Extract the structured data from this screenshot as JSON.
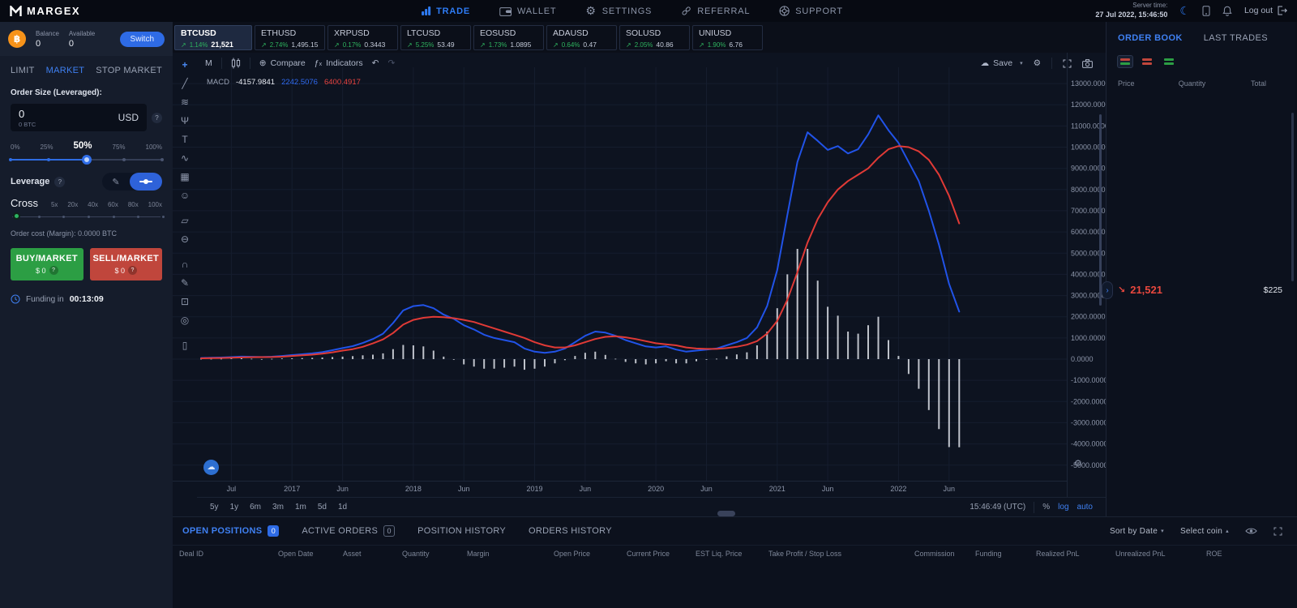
{
  "colors": {
    "accent": "#2e7cf6",
    "green": "#2eb35f",
    "buy": "#2c9e44",
    "sell": "#c0463c",
    "down": "#e8483e",
    "macd_line": "#2153e8",
    "signal_line": "#e03a36",
    "histogram": "#dfe3ea"
  },
  "app": {
    "brand": "MARGEX",
    "nav": [
      {
        "label": "TRADE",
        "icon": "trade-chart-icon",
        "active": true
      },
      {
        "label": "WALLET",
        "icon": "wallet-icon",
        "active": false
      },
      {
        "label": "SETTINGS",
        "icon": "gear-icon",
        "active": false
      },
      {
        "label": "REFERRAL",
        "icon": "link-icon",
        "active": false
      },
      {
        "label": "SUPPORT",
        "icon": "lifebuoy-icon",
        "active": false
      }
    ],
    "server_time_label": "Server time:",
    "server_time": "27 Jul 2022, 15:46:50",
    "logout_label": "Log out"
  },
  "account": {
    "balance_label": "Balance",
    "balance": "0",
    "available_label": "Available",
    "available": "0",
    "switch_label": "Switch"
  },
  "order_form": {
    "tabs": [
      "LIMIT",
      "MARKET",
      "STOP MARKET"
    ],
    "active_tab": "MARKET",
    "size_label": "Order Size (Leveraged):",
    "size_value": "0",
    "size_sub": "0 BTC",
    "size_unit": "USD",
    "help_glyph": "?",
    "size_marks": [
      "0%",
      "25%",
      "50%",
      "75%",
      "100%"
    ],
    "size_active_mark": "50%",
    "size_percent": 50,
    "leverage_label": "Leverage",
    "margin_mode": "Cross",
    "leverage_marks": [
      "5x",
      "20x",
      "40x",
      "60x",
      "80x",
      "100x"
    ],
    "order_cost": "Order cost (Margin): 0.0000 BTC",
    "buy_label": "BUY/MARKET",
    "buy_amount": "$ 0",
    "sell_label": "SELL/MARKET",
    "sell_amount": "$ 0",
    "funding_label": "Funding in",
    "funding_time": "00:13:09"
  },
  "tickers": [
    {
      "symbol": "BTCUSD",
      "change": "1.14%",
      "price": "21,521",
      "active": true
    },
    {
      "symbol": "ETHUSD",
      "change": "2.74%",
      "price": "1,495.15",
      "active": false
    },
    {
      "symbol": "XRPUSD",
      "change": "0.17%",
      "price": "0.3443",
      "active": false
    },
    {
      "symbol": "LTCUSD",
      "change": "5.25%",
      "price": "53.49",
      "active": false
    },
    {
      "symbol": "EOSUSD",
      "change": "1.73%",
      "price": "1.0895",
      "active": false
    },
    {
      "symbol": "ADAUSD",
      "change": "0.64%",
      "price": "0.47",
      "active": false
    },
    {
      "symbol": "SOLUSD",
      "change": "2.05%",
      "price": "40.86",
      "active": false
    },
    {
      "symbol": "UNIUSD",
      "change": "1.90%",
      "price": "6.76",
      "active": false
    }
  ],
  "chart": {
    "timeframe": "M",
    "compare_label": "Compare",
    "indicators_label": "Indicators",
    "save_label": "Save",
    "legend": {
      "name": "MACD",
      "histogram_value": "-4157.9841",
      "macd_value": "2242.5076",
      "signal_value": "6400.4917"
    },
    "tools": [
      "crosshair",
      "trend-line",
      "gann-fib",
      "pitchfork",
      "text",
      "xabcd-pattern",
      "forecast",
      "emoji",
      "measure",
      "zoom-out",
      "magnet",
      "drawing-mode",
      "lock-drawings",
      "hide-drawings",
      "remove-drawings"
    ],
    "ranges": [
      "5y",
      "1y",
      "6m",
      "3m",
      "1m",
      "5d",
      "1d"
    ],
    "clock": "15:46:49 (UTC)",
    "scale_percent": "%",
    "scale_log": "log",
    "scale_auto": "auto"
  },
  "chart_data": {
    "type": "macd",
    "title": "MACD indicator, BTCUSD monthly",
    "x_start": "2016-04",
    "x_interval": "month",
    "n_points": 76,
    "x_axis_labels": [
      {
        "label": "Jul",
        "i": 3
      },
      {
        "label": "2017",
        "i": 9
      },
      {
        "label": "Jun",
        "i": 14
      },
      {
        "label": "2018",
        "i": 21
      },
      {
        "label": "Jun",
        "i": 26
      },
      {
        "label": "2019",
        "i": 33
      },
      {
        "label": "Jun",
        "i": 38
      },
      {
        "label": "2020",
        "i": 45
      },
      {
        "label": "Jun",
        "i": 50
      },
      {
        "label": "2021",
        "i": 57
      },
      {
        "label": "Jun",
        "i": 62
      },
      {
        "label": "2022",
        "i": 69
      },
      {
        "label": "Jun",
        "i": 74
      }
    ],
    "ylim": [
      -5000,
      13000
    ],
    "y_ticks": [
      "13000.0000",
      "12000.0000",
      "11000.0000",
      "10000.0000",
      "9000.0000",
      "8000.0000",
      "7000.0000",
      "6000.0000",
      "5000.0000",
      "4000.0000",
      "3000.0000",
      "2000.0000",
      "1000.0000",
      "0.0000",
      "-1000.0000",
      "-2000.0000",
      "-3000.0000",
      "-4000.0000",
      "-5000.0000"
    ],
    "series": [
      {
        "name": "MACD",
        "color": "#2153e8",
        "values": [
          55,
          65,
          75,
          95,
          120,
          110,
          100,
          115,
          150,
          190,
          230,
          270,
          330,
          420,
          520,
          610,
          760,
          950,
          1200,
          1700,
          2300,
          2500,
          2550,
          2400,
          2100,
          1900,
          1600,
          1400,
          1150,
          1000,
          900,
          800,
          500,
          350,
          300,
          350,
          500,
          800,
          1100,
          1300,
          1250,
          1100,
          900,
          750,
          600,
          550,
          600,
          450,
          350,
          400,
          450,
          500,
          650,
          800,
          1000,
          1500,
          2500,
          4200,
          6800,
          9300,
          10700,
          10300,
          9870,
          10050,
          9700,
          9900,
          10600,
          11500,
          10800,
          10200,
          9300,
          8400,
          7000,
          5400,
          3550,
          2242.5076
        ]
      },
      {
        "name": "Signal",
        "color": "#e03a36",
        "values": [
          40,
          48,
          55,
          65,
          80,
          90,
          95,
          100,
          115,
          150,
          180,
          210,
          255,
          320,
          400,
          470,
          580,
          740,
          930,
          1230,
          1630,
          1850,
          1950,
          2000,
          1980,
          1930,
          1850,
          1750,
          1600,
          1450,
          1300,
          1150,
          1000,
          800,
          650,
          550,
          550,
          650,
          800,
          950,
          1050,
          1080,
          1030,
          950,
          850,
          750,
          700,
          650,
          550,
          500,
          480,
          480,
          520,
          580,
          680,
          850,
          1200,
          1800,
          2800,
          4100,
          5500,
          6600,
          7400,
          8000,
          8400,
          8700,
          9000,
          9500,
          9900,
          10050,
          10000,
          9800,
          9400,
          8700,
          7700,
          6400.4917
        ]
      },
      {
        "name": "Histogram",
        "color": "#dfe3ea",
        "values": [
          15,
          17,
          20,
          30,
          40,
          20,
          5,
          15,
          35,
          40,
          50,
          60,
          75,
          100,
          120,
          140,
          180,
          210,
          270,
          470,
          670,
          650,
          600,
          400,
          120,
          -30,
          -250,
          -350,
          -450,
          -450,
          -400,
          -350,
          -500,
          -450,
          -350,
          -200,
          -50,
          150,
          300,
          350,
          200,
          20,
          -130,
          -200,
          -250,
          -200,
          -100,
          -200,
          -200,
          -100,
          -30,
          20,
          130,
          220,
          320,
          650,
          1300,
          2400,
          4000,
          5200,
          5200,
          3700,
          2470,
          2050,
          1300,
          1200,
          1600,
          2000,
          900,
          150,
          -700,
          -1400,
          -2400,
          -3300,
          -4150,
          -4157.9841
        ]
      }
    ]
  },
  "order_book": {
    "tab_order_book": "ORDER BOOK",
    "tab_last_trades": "LAST TRADES",
    "columns": [
      "Price",
      "Quantity",
      "Total"
    ],
    "last_price": "21,521",
    "last_price_total": "$225"
  },
  "positions": {
    "tabs": [
      {
        "label": "OPEN POSITIONS",
        "badge": "0",
        "active": true
      },
      {
        "label": "ACTIVE ORDERS",
        "badge": "0",
        "active": false
      },
      {
        "label": "POSITION HISTORY",
        "active": false
      },
      {
        "label": "ORDERS HISTORY",
        "active": false
      }
    ],
    "sort_label": "Sort by Date",
    "coin_label": "Select coin",
    "columns": [
      "Deal ID",
      "Open Date",
      "Asset",
      "Quantity",
      "Margin",
      "Open Price",
      "Current Price",
      "EST Liq. Price",
      "Take Profit / Stop Loss",
      "Commission",
      "Funding",
      "Realized PnL",
      "Unrealized PnL",
      "ROE"
    ]
  }
}
